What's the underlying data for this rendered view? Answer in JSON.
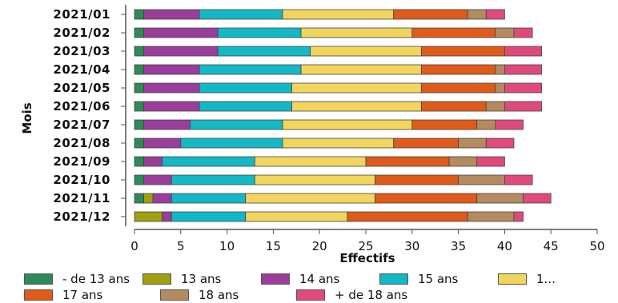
{
  "chart_data": {
    "type": "bar",
    "orientation": "horizontal",
    "stacked": true,
    "title": "",
    "xlabel": "Effectifs",
    "ylabel": "Mois",
    "xlim": [
      0,
      50
    ],
    "x_ticks": [
      0,
      5,
      10,
      15,
      20,
      25,
      30,
      35,
      40,
      45,
      50
    ],
    "grid": false,
    "legend_position": "bottom",
    "categories": [
      "2021/01",
      "2021/02",
      "2021/03",
      "2021/04",
      "2021/05",
      "2021/06",
      "2021/07",
      "2021/08",
      "2021/09",
      "2021/10",
      "2021/11",
      "2021/12"
    ],
    "series": [
      {
        "name": "- de 13 ans",
        "color": "#2e8b57",
        "values": [
          1,
          1,
          1,
          1,
          1,
          1,
          1,
          1,
          1,
          1,
          1,
          0
        ]
      },
      {
        "name": "13 ans",
        "color": "#a0a010",
        "values": [
          0,
          0,
          0,
          0,
          0,
          0,
          0,
          0,
          0,
          0,
          1,
          3
        ]
      },
      {
        "name": "14 ans",
        "color": "#9b3d9b",
        "values": [
          6,
          8,
          8,
          6,
          6,
          6,
          5,
          4,
          2,
          3,
          2,
          1
        ]
      },
      {
        "name": "15 ans",
        "color": "#13b8c6",
        "values": [
          9,
          9,
          10,
          11,
          10,
          10,
          10,
          11,
          10,
          9,
          8,
          8
        ]
      },
      {
        "name": "1...",
        "color": "#f2d55c",
        "values": [
          12,
          12,
          12,
          13,
          14,
          14,
          14,
          12,
          12,
          13,
          14,
          11
        ]
      },
      {
        "name": "17 ans",
        "color": "#e05a1a",
        "values": [
          8,
          9,
          9,
          8,
          8,
          7,
          7,
          7,
          9,
          9,
          11,
          13
        ]
      },
      {
        "name": "18 ans",
        "color": "#b38b5d",
        "values": [
          2,
          2,
          0,
          1,
          1,
          2,
          2,
          3,
          3,
          5,
          5,
          5
        ]
      },
      {
        "name": "+ de 18 ans",
        "color": "#e04a7a",
        "values": [
          2,
          2,
          4,
          4,
          4,
          4,
          3,
          3,
          3,
          3,
          3,
          1
        ]
      }
    ]
  },
  "legend_rows": [
    [
      0,
      1,
      2,
      3,
      4
    ],
    [
      5,
      6,
      7
    ]
  ]
}
